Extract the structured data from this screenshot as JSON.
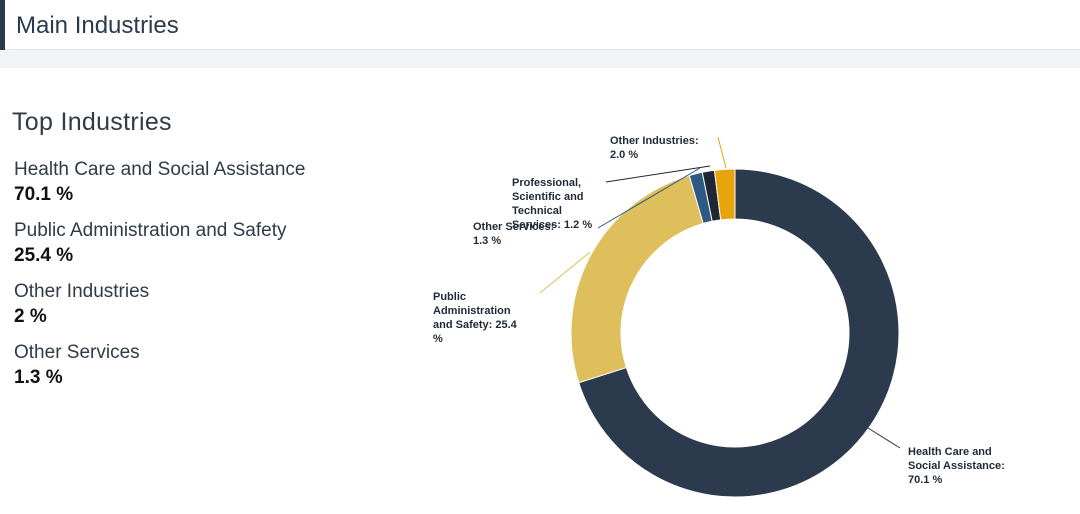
{
  "header": {
    "title": "Main Industries"
  },
  "panel": {
    "title": "Top Industries",
    "items": [
      {
        "name": "Health Care and Social Assistance",
        "value": "70.1 %"
      },
      {
        "name": "Public Administration and Safety",
        "value": "25.4 %"
      },
      {
        "name": "Other Industries",
        "value": "2 %"
      },
      {
        "name": "Other Services",
        "value": "1.3 %"
      }
    ]
  },
  "chart_data": {
    "type": "pie",
    "donut": true,
    "legend": "none",
    "slices": [
      {
        "label": "Health Care and Social Assistance",
        "value": 70.1,
        "color": "#2b3a4c",
        "label_lines": [
          "Health Care and",
          "Social Assistance:",
          "70.1 %"
        ]
      },
      {
        "label": "Public Administration and Safety",
        "value": 25.4,
        "color": "#dfbf5c",
        "label_lines": [
          "Public",
          "Administration",
          "and Safety: 25.4",
          "%"
        ]
      },
      {
        "label": "Other Services",
        "value": 1.3,
        "color": "#2c5a82",
        "label_lines": [
          "Other Services:",
          "1.3 %"
        ]
      },
      {
        "label": "Professional, Scientific and Technical Services",
        "value": 1.2,
        "color": "#1e2733",
        "label_lines": [
          "Professional,",
          "Scientific and",
          "Technical",
          "Services: 1.2 %"
        ]
      },
      {
        "label": "Other Industries",
        "value": 2.0,
        "color": "#e8a40d",
        "label_lines": [
          "Other Industries:",
          "2.0 %"
        ]
      }
    ]
  }
}
